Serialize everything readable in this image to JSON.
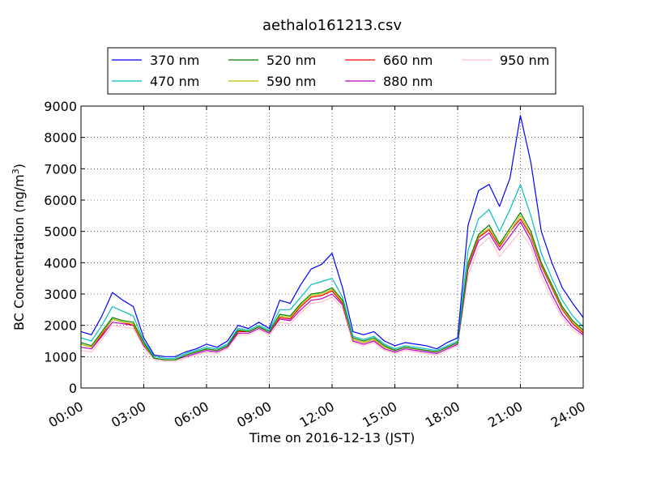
{
  "chart_data": {
    "type": "line",
    "title": "aethalo161213.csv",
    "xlabel": "Time on 2016-12-13 (JST)",
    "ylabel_prefix": "BC Concentration (ng/m",
    "ylabel_sup": "3",
    "ylabel_suffix": ")",
    "xlim": [
      0,
      24
    ],
    "ylim": [
      0,
      9000
    ],
    "x_ticks": [
      0,
      3,
      6,
      9,
      12,
      15,
      18,
      21,
      24
    ],
    "x_tick_labels": [
      "00:00",
      "03:00",
      "06:00",
      "09:00",
      "12:00",
      "15:00",
      "18:00",
      "21:00",
      "24:00"
    ],
    "y_ticks": [
      0,
      1000,
      2000,
      3000,
      4000,
      5000,
      6000,
      7000,
      8000,
      9000
    ],
    "y_tick_labels": [
      "0",
      "1000",
      "2000",
      "3000",
      "4000",
      "5000",
      "6000",
      "7000",
      "8000",
      "9000"
    ],
    "grid": true,
    "legend_position": "top-center, above plot, 4 columns",
    "x": [
      0,
      0.5,
      1,
      1.5,
      2,
      2.5,
      3,
      3.5,
      4,
      4.5,
      5,
      5.5,
      6,
      6.5,
      7,
      7.5,
      8,
      8.5,
      9,
      9.5,
      10,
      10.5,
      11,
      11.5,
      12,
      12.5,
      13,
      13.5,
      14,
      14.5,
      15,
      15.5,
      16,
      16.5,
      17,
      17.5,
      18,
      18.5,
      19,
      19.5,
      20,
      20.5,
      21,
      21.5,
      22,
      22.5,
      23,
      23.5,
      24
    ],
    "series": [
      {
        "name": "370 nm",
        "color": "#0000ff",
        "values": [
          1800,
          1700,
          2300,
          3050,
          2800,
          2600,
          1600,
          1050,
          1000,
          1000,
          1150,
          1250,
          1400,
          1300,
          1500,
          2000,
          1900,
          2100,
          1900,
          2800,
          2700,
          3300,
          3800,
          3950,
          4300,
          3200,
          1800,
          1700,
          1800,
          1500,
          1350,
          1450,
          1400,
          1350,
          1250,
          1450,
          1600,
          5200,
          6300,
          6500,
          5800,
          6700,
          8700,
          7200,
          5000,
          4000,
          3200,
          2700,
          2250
        ]
      },
      {
        "name": "470 nm",
        "color": "#00bfbf",
        "values": [
          1600,
          1500,
          2000,
          2600,
          2450,
          2300,
          1500,
          1000,
          950,
          950,
          1100,
          1200,
          1300,
          1250,
          1400,
          1900,
          1850,
          2000,
          1850,
          2500,
          2500,
          2900,
          3300,
          3400,
          3500,
          2900,
          1650,
          1550,
          1650,
          1400,
          1250,
          1350,
          1300,
          1250,
          1200,
          1350,
          1500,
          4400,
          5400,
          5700,
          5000,
          5700,
          6500,
          5500,
          4300,
          3500,
          2800,
          2300,
          1950
        ]
      },
      {
        "name": "520 nm",
        "color": "#008000",
        "values": [
          1450,
          1350,
          1800,
          2250,
          2150,
          2100,
          1450,
          950,
          900,
          900,
          1050,
          1150,
          1250,
          1200,
          1350,
          1850,
          1800,
          1950,
          1800,
          2350,
          2300,
          2700,
          3000,
          3050,
          3200,
          2800,
          1600,
          1500,
          1600,
          1350,
          1200,
          1300,
          1250,
          1200,
          1150,
          1300,
          1450,
          4000,
          4900,
          5200,
          4600,
          5100,
          5600,
          5000,
          4000,
          3300,
          2600,
          2150,
          1850
        ]
      },
      {
        "name": "590 nm",
        "color": "#bfbf00",
        "values": [
          1400,
          1300,
          1750,
          2200,
          2100,
          2050,
          1400,
          950,
          900,
          900,
          1050,
          1150,
          1250,
          1200,
          1350,
          1850,
          1800,
          1950,
          1800,
          2300,
          2250,
          2650,
          2950,
          3000,
          3150,
          2750,
          1550,
          1450,
          1550,
          1300,
          1200,
          1300,
          1250,
          1200,
          1150,
          1300,
          1450,
          3950,
          4850,
          5100,
          4550,
          5000,
          5500,
          4900,
          3950,
          3250,
          2550,
          2100,
          1800
        ]
      },
      {
        "name": "660 nm",
        "color": "#ff0000",
        "values": [
          1400,
          1300,
          1700,
          2200,
          2100,
          2000,
          1400,
          950,
          900,
          900,
          1050,
          1150,
          1250,
          1200,
          1350,
          1800,
          1800,
          1950,
          1800,
          2250,
          2200,
          2600,
          2900,
          2950,
          3100,
          2700,
          1550,
          1450,
          1550,
          1300,
          1200,
          1300,
          1250,
          1200,
          1150,
          1300,
          1450,
          3900,
          4800,
          5050,
          4500,
          5000,
          5400,
          4850,
          3900,
          3200,
          2500,
          2050,
          1750
        ]
      },
      {
        "name": "880 nm",
        "color": "#bf00bf",
        "values": [
          1300,
          1250,
          1650,
          2100,
          2050,
          2000,
          1350,
          950,
          900,
          900,
          1000,
          1100,
          1200,
          1150,
          1300,
          1750,
          1750,
          1900,
          1750,
          2200,
          2150,
          2500,
          2800,
          2850,
          3000,
          2650,
          1500,
          1400,
          1500,
          1250,
          1150,
          1250,
          1200,
          1150,
          1100,
          1250,
          1400,
          3800,
          4700,
          4950,
          4400,
          4850,
          5300,
          4700,
          3750,
          3000,
          2350,
          1950,
          1700
        ]
      },
      {
        "name": "950 nm",
        "color": "#ffc0cb",
        "values": [
          1200,
          1150,
          1550,
          2000,
          1950,
          1900,
          1300,
          900,
          850,
          850,
          950,
          1050,
          1150,
          1100,
          1250,
          1700,
          1700,
          1850,
          1700,
          2100,
          2050,
          2400,
          2700,
          2750,
          2900,
          2550,
          1450,
          1350,
          1450,
          1200,
          1100,
          1200,
          1150,
          1100,
          1050,
          1200,
          1350,
          3600,
          4500,
          4800,
          4200,
          4600,
          5000,
          4500,
          3550,
          2850,
          2250,
          1850,
          1650
        ]
      }
    ]
  }
}
